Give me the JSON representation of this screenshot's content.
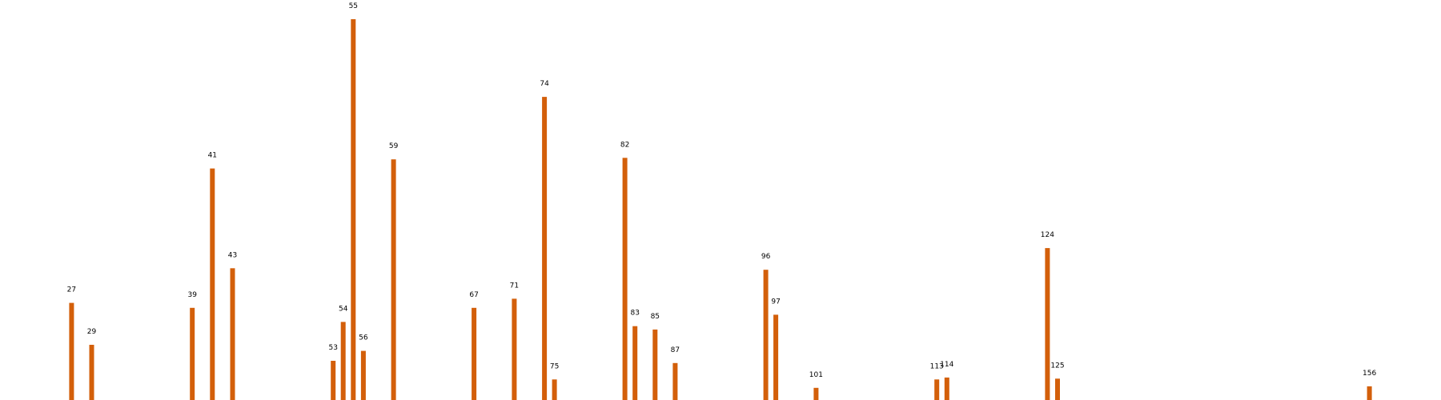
{
  "chart_data": {
    "type": "bar",
    "title": "",
    "xlabel": "",
    "ylabel": "",
    "bar_color": "#d35f0a",
    "grid": false,
    "axes_visible": false,
    "ylim": [
      0,
      100
    ],
    "xlim": [
      21,
      162
    ],
    "x": [
      27,
      29,
      39,
      41,
      43,
      53,
      54,
      55,
      56,
      59,
      67,
      71,
      74,
      75,
      82,
      83,
      85,
      87,
      96,
      97,
      101,
      113,
      114,
      124,
      125,
      156
    ],
    "values": [
      25.5,
      14.5,
      24.2,
      60.8,
      34.6,
      10.3,
      20.5,
      100,
      12.9,
      63.2,
      24.2,
      26.6,
      79.6,
      5.4,
      63.6,
      19.4,
      18.5,
      9.7,
      34.2,
      22.4,
      3.2,
      5.4,
      5.9,
      39.9,
      5.6,
      3.6
    ],
    "labels": [
      "27",
      "29",
      "39",
      "41",
      "43",
      "53",
      "54",
      "55",
      "56",
      "59",
      "67",
      "71",
      "74",
      "75",
      "82",
      "83",
      "85",
      "87",
      "96",
      "97",
      "101",
      "113",
      "114",
      "124",
      "125",
      "156"
    ]
  }
}
